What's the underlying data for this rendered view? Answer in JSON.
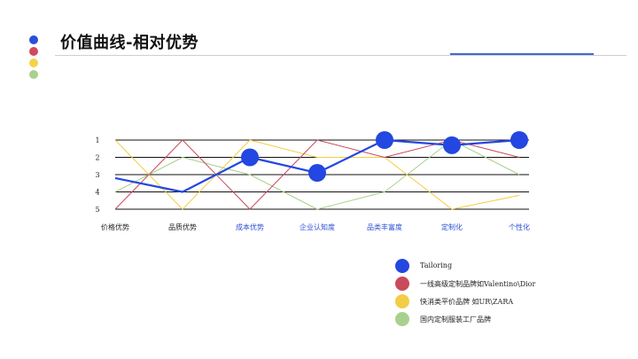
{
  "header": {
    "title": "价值曲线-相对优势",
    "dot_colors": [
      "#2b4fd6",
      "#d14b5a",
      "#f3d34a",
      "#a9d18e"
    ]
  },
  "colors": {
    "tailoring": "#2347e0",
    "luxury": "#c94a5c",
    "fast_fashion": "#f3cd45",
    "factory": "#a9d18e",
    "rule_accent": "#3f6ad8"
  },
  "chart_data": {
    "type": "line",
    "y_ticks": [
      "1",
      "2",
      "3",
      "4",
      "5"
    ],
    "ylim": [
      1,
      5
    ],
    "y_inverted": true,
    "grid": true,
    "legend_position": "bottom-right",
    "categories": [
      "价格优势",
      "品质优势",
      "成本优势",
      "企业认知度",
      "品类丰富度",
      "定制化",
      "个性化"
    ],
    "highlighted_categories": [
      false,
      false,
      true,
      true,
      true,
      true,
      true
    ],
    "series": [
      {
        "name": "Tailoring",
        "values": [
          3.2,
          4.0,
          2.0,
          2.9,
          1.0,
          1.3,
          1.0
        ],
        "markers": [
          false,
          false,
          true,
          true,
          true,
          true,
          true
        ]
      },
      {
        "name": "一线高级定制品牌如Valentino\\Dior",
        "values": [
          5,
          1,
          5,
          1,
          2,
          1,
          2
        ]
      },
      {
        "name": "快消类平价品牌 如UR\\ZARA",
        "values": [
          1,
          5,
          1,
          2,
          2,
          5,
          4.2
        ]
      },
      {
        "name": "国内定制服装工厂品牌",
        "values": [
          4,
          2,
          3,
          5,
          4,
          1,
          3
        ]
      }
    ]
  }
}
